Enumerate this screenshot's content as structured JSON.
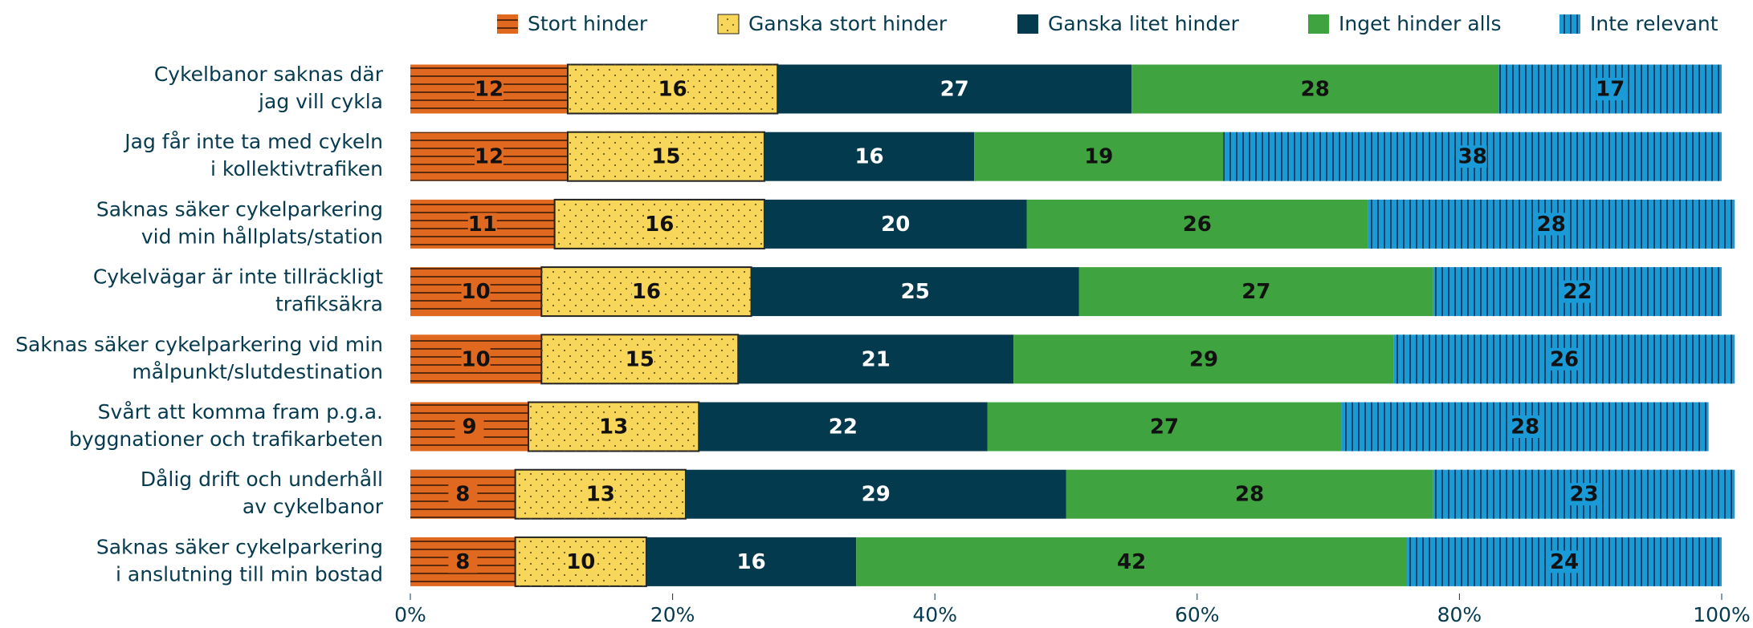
{
  "chart_data": {
    "type": "stacked_barh",
    "categories": [
      "Cykelbanor saknas där\njag vill cykla",
      "Jag får inte ta med cykeln\ni kollektivtrafiken",
      "Saknas säker cykelparkering\nvid min hållplats/station",
      "Cykelvägar är inte tillräckligt\ntrafiksäkra",
      "Saknas säker cykelparkering vid min\nmålpunkt/slutdestination",
      "Svårt att komma fram p.g.a.\nbyggnationer och trafikarbeten",
      "Dålig drift och underhåll\nav cykelbanor",
      "Saknas säker cykelparkering\ni anslutning till min bostad"
    ],
    "series": [
      {
        "name": "Stort hinder",
        "color": "#e0691f",
        "pattern": "hlines",
        "values": [
          12,
          12,
          11,
          10,
          10,
          9,
          8,
          8
        ]
      },
      {
        "name": "Ganska stort hinder",
        "color": "#f7d65a",
        "pattern": "dots",
        "values": [
          16,
          15,
          16,
          16,
          15,
          13,
          13,
          10
        ]
      },
      {
        "name": "Ganska litet hinder",
        "color": "#043a4e",
        "values": [
          27,
          16,
          20,
          25,
          21,
          22,
          29,
          16
        ]
      },
      {
        "name": "Inget hinder alls",
        "color": "#3fa43f",
        "values": [
          28,
          19,
          26,
          27,
          29,
          27,
          28,
          42
        ]
      },
      {
        "name": "Inte relevant",
        "color": "#1a9ad6",
        "pattern": "vlines",
        "values": [
          17,
          38,
          28,
          22,
          26,
          28,
          23,
          24
        ]
      }
    ],
    "xlim": [
      0,
      100
    ],
    "xticks": [
      {
        "value": 0,
        "label": "0%"
      },
      {
        "value": 20,
        "label": "20%"
      },
      {
        "value": 40,
        "label": "40%"
      },
      {
        "value": 60,
        "label": "60%"
      },
      {
        "value": 80,
        "label": "80%"
      },
      {
        "value": 100,
        "label": "100%"
      }
    ],
    "legend": "top"
  }
}
